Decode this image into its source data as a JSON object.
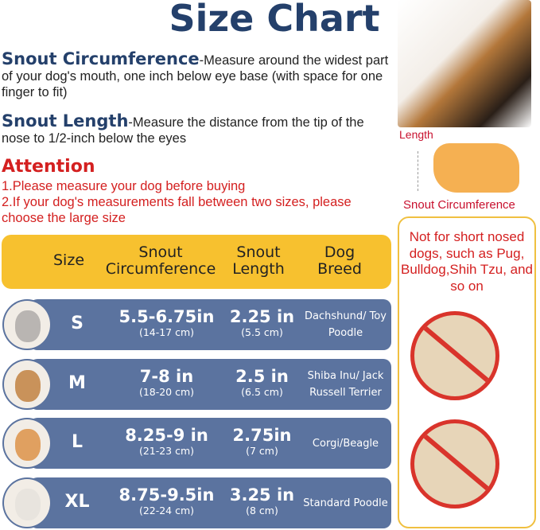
{
  "title": "Size Chart",
  "snout_circumference": {
    "heading": "Snout Circumference",
    "text": "-Measure around the widest part of your dog's mouth, one inch below eye base (with space for one finger to fit)"
  },
  "snout_length": {
    "heading": "Snout Length",
    "text": "-Measure the distance from the tip of the nose to 1/2-inch below the eyes"
  },
  "attention": {
    "heading": "Attention",
    "lines": [
      "1.Please measure your dog before buying",
      "2.If your dog's measurements fall between two sizes, please choose the large size"
    ]
  },
  "table": {
    "headers": {
      "size": "Size",
      "circ1": "Snout",
      "circ2": "Circumference",
      "len1": "Snout",
      "len2": "Length",
      "breed1": "Dog",
      "breed2": "Breed"
    },
    "rows": [
      {
        "size": "S",
        "circ_in": "5.5-6.75in",
        "circ_cm": "(14-17 cm)",
        "len_in": "2.25 in",
        "len_cm": "(5.5 cm)",
        "breed": "Dachshund/ Toy Poodle"
      },
      {
        "size": "M",
        "circ_in": "7-8 in",
        "circ_cm": "(18-20 cm)",
        "len_in": "2.5 in",
        "len_cm": "(6.5 cm)",
        "breed": "Shiba Inu/ Jack Russell Terrier"
      },
      {
        "size": "L",
        "circ_in": "8.25-9 in",
        "circ_cm": "(21-23 cm)",
        "len_in": "2.75in",
        "len_cm": "(7 cm)",
        "breed": "Corgi/Beagle"
      },
      {
        "size": "XL",
        "circ_in": "8.75-9.5in",
        "circ_cm": "(22-24 cm)",
        "len_in": "3.25 in",
        "len_cm": "(8 cm)",
        "breed": "Standard Poodle"
      }
    ]
  },
  "diagram": {
    "length_label": "Length",
    "circ_label": "Snout Circumference"
  },
  "warning": "Not for short nosed dogs, such as Pug, Bulldog,Shih Tzu, and so on",
  "colors": {
    "navy": "#24406b",
    "red": "#d42020",
    "yellow": "#f7c12f",
    "row": "#5b739f"
  }
}
